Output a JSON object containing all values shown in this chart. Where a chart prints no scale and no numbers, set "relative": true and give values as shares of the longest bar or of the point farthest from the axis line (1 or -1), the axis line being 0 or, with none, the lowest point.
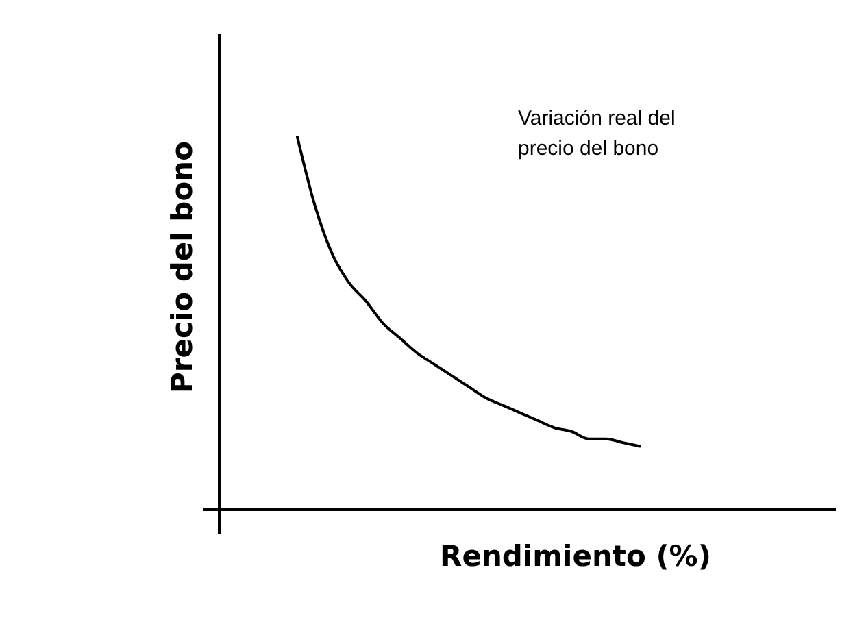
{
  "chart_data": {
    "type": "line",
    "relative": true,
    "xlabel": "Rendimiento (%)",
    "ylabel": "Precio del bono",
    "annotations": [
      "Variación real del precio del bono"
    ],
    "categories": [
      null,
      null,
      null,
      null,
      null,
      null,
      null,
      null,
      null,
      null,
      null,
      null,
      null,
      null,
      null,
      null,
      null,
      null,
      null,
      null,
      null
    ],
    "series": [
      {
        "color": "#000000",
        "values": [
          1,
          0.82,
          0.69,
          0.61,
          0.56,
          0.5,
          0.46,
          0.42,
          0.39,
          0.36,
          0.33,
          0.3,
          0.28,
          0.26,
          0.24,
          0.22,
          0.21,
          0.19,
          0.19,
          0.18,
          0.17
        ]
      }
    ],
    "marker": "none",
    "line_style": "solid"
  }
}
